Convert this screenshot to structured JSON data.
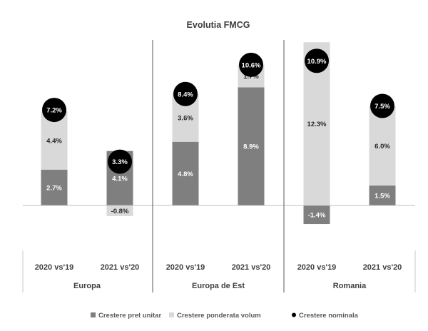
{
  "chart_data": {
    "type": "bar",
    "stacked": true,
    "title": "Evolutia FMCG",
    "groups": [
      {
        "label": "Europa",
        "categories": [
          "2020 vs'19",
          "2021 vs'20"
        ]
      },
      {
        "label": "Europa de Est",
        "categories": [
          "2020 vs'19",
          "2021 vs'20"
        ]
      },
      {
        "label": "Romania",
        "categories": [
          "2020 vs'19",
          "2021 vs'20"
        ]
      }
    ],
    "categories": [
      "2020 vs'19",
      "2021 vs'20",
      "2020 vs'19",
      "2021 vs'20",
      "2020 vs'19",
      "2021 vs'20"
    ],
    "series": [
      {
        "name": "Crestere pret unitar",
        "color": "#7f7f7f",
        "values": [
          2.7,
          4.1,
          4.8,
          8.9,
          -1.4,
          1.5
        ],
        "labels": [
          "2.7%",
          "4.1%",
          "4.8%",
          "8.9%",
          "-1.4%",
          "1.5%"
        ]
      },
      {
        "name": "Crestere ponderata volum",
        "color": "#d9d9d9",
        "values": [
          4.4,
          -0.8,
          3.6,
          1.7,
          12.3,
          6.0
        ],
        "labels": [
          "4.4%",
          "-0.8%",
          "3.6%",
          "1.7%",
          "12.3%",
          "6.0%"
        ]
      },
      {
        "name": "Crestere nominala",
        "color": "#000000",
        "values": [
          7.2,
          3.3,
          8.4,
          10.6,
          10.9,
          7.5
        ],
        "labels": [
          "7.2%",
          "3.3%",
          "8.4%",
          "10.6%",
          "10.9%",
          "7.5%"
        ]
      }
    ],
    "legend_position": "bottom",
    "grid": false
  }
}
